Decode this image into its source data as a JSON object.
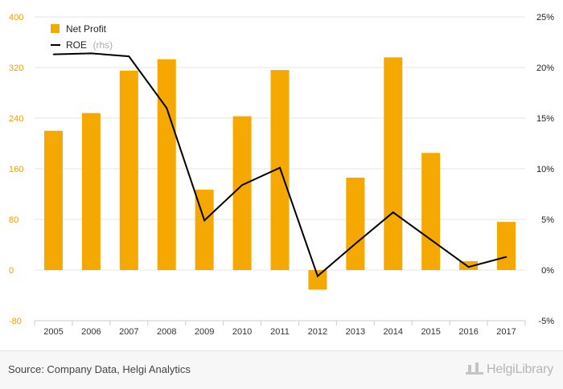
{
  "chart_data": {
    "type": "bar+line",
    "categories": [
      "2005",
      "2006",
      "2007",
      "2008",
      "2009",
      "2010",
      "2011",
      "2012",
      "2013",
      "2014",
      "2015",
      "2016",
      "2017"
    ],
    "series": [
      {
        "name": "Net Profit",
        "axis": "left",
        "kind": "bar",
        "color": "#f5a800",
        "values": [
          220,
          248,
          315,
          333,
          127,
          243,
          316,
          -31,
          146,
          336,
          185,
          14,
          76
        ]
      },
      {
        "name": "ROE",
        "suffix": "(rhs)",
        "axis": "right",
        "kind": "line",
        "color": "#000000",
        "values": [
          21.3,
          21.4,
          21.1,
          16.0,
          4.9,
          8.4,
          10.1,
          -0.6,
          2.6,
          5.7,
          3.0,
          0.3,
          1.3
        ]
      }
    ],
    "left_axis": {
      "ylim": [
        -80,
        400
      ],
      "ticks": [
        "-80",
        "0",
        "80",
        "160",
        "240",
        "320",
        "400"
      ],
      "tick_values": [
        -80,
        0,
        80,
        160,
        240,
        320,
        400
      ]
    },
    "right_axis": {
      "ylim": [
        -5,
        25
      ],
      "ticks": [
        "-5%",
        "0%",
        "5%",
        "10%",
        "15%",
        "20%",
        "25%"
      ],
      "tick_values": [
        -5,
        0,
        5,
        10,
        15,
        20,
        25
      ]
    },
    "legend": {
      "placement": "top-left"
    },
    "grid": true
  },
  "footer": {
    "source": "Source: Company Data, Helgi Analytics",
    "brand": "HelgiLibrary"
  }
}
